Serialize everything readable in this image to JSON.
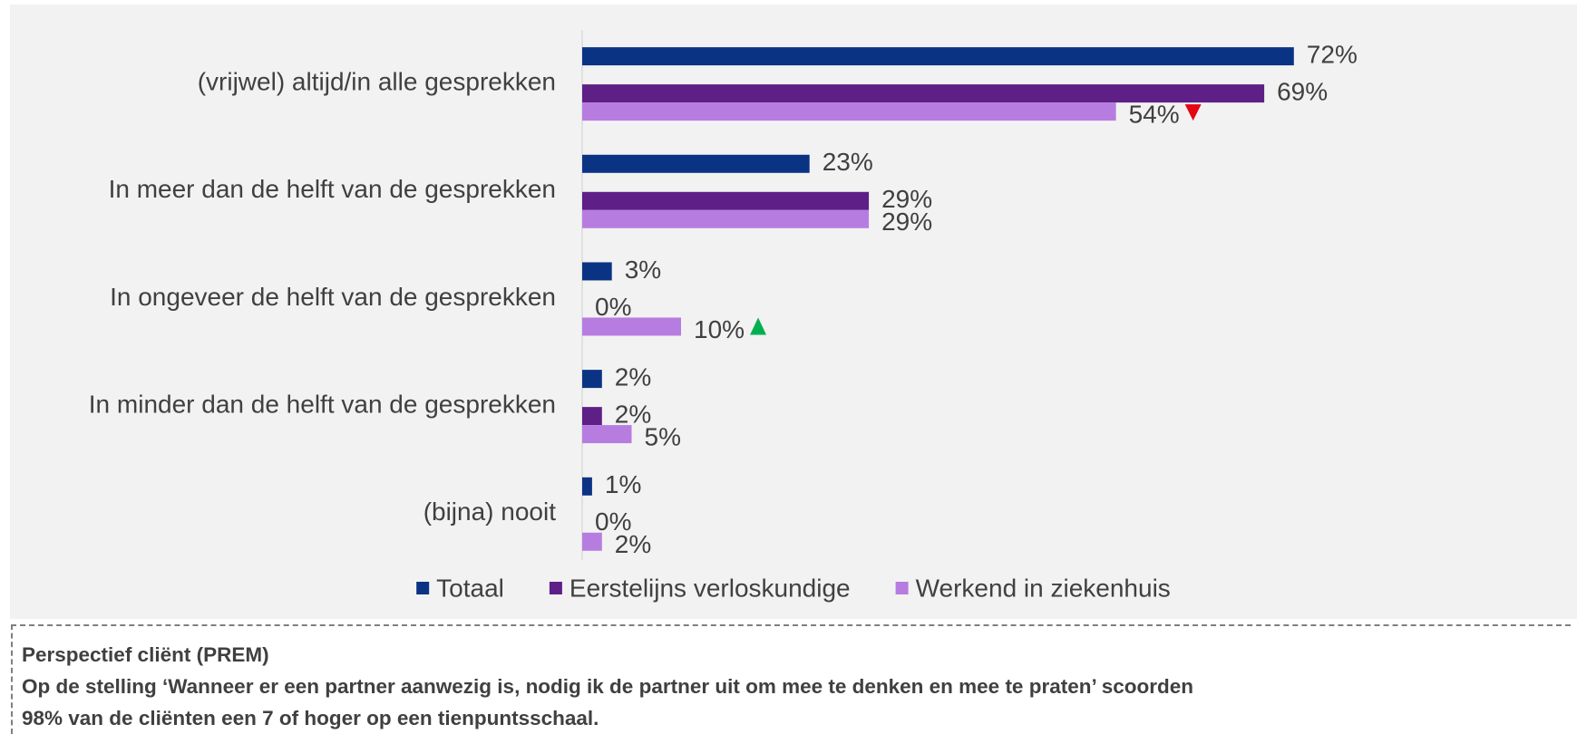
{
  "chart_data": {
    "type": "hbar",
    "categories": [
      "(vrijwel) altijd/in alle gesprekken",
      "In meer dan de helft van de gesprekken",
      "In ongeveer de helft van de gesprekken",
      "In minder dan de helft van de gesprekken",
      "(bijna) nooit"
    ],
    "series": [
      {
        "name": "Totaal",
        "color": "#0b3384",
        "values": [
          72,
          23,
          3,
          2,
          1
        ],
        "value_labels": [
          "72%",
          "23%",
          "3%",
          "2%",
          "1%"
        ],
        "significance": [
          null,
          null,
          null,
          null,
          null
        ]
      },
      {
        "name": "Eerstelijns verloskundige",
        "color": "#5e1f87",
        "values": [
          69,
          29,
          0,
          2,
          0
        ],
        "value_labels": [
          "69%",
          "29%",
          "0%",
          "2%",
          "0%"
        ],
        "significance": [
          null,
          null,
          null,
          null,
          null
        ]
      },
      {
        "name": "Werkend in ziekenhuis",
        "color": "#b77ce0",
        "values": [
          54,
          29,
          10,
          5,
          2
        ],
        "value_labels": [
          "54%",
          "29%",
          "10%",
          "5%",
          "2%"
        ],
        "significance": [
          "down",
          null,
          "up",
          null,
          null
        ]
      }
    ],
    "xlim": [
      0,
      100
    ],
    "legend": "bottom"
  },
  "note": {
    "title": "Perspectief cliënt (PREM)",
    "lines": [
      "Op de stelling ‘Wanneer er een partner aanwezig is, nodig ik de partner uit om mee te denken en mee te praten’ scoorden",
      "98% van de cliënten een 7 of hoger op een tienpuntsschaal."
    ]
  }
}
